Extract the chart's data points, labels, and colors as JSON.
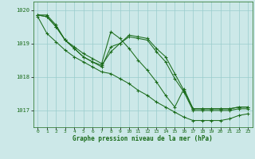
{
  "background_color": "#cce8e8",
  "grid_color": "#99cccc",
  "line_color": "#1a6b1a",
  "text_color": "#1a6b1a",
  "title": "Graphe pression niveau de la mer (hPa)",
  "xlim": [
    -0.5,
    23.5
  ],
  "ylim": [
    1016.5,
    1020.25
  ],
  "yticks": [
    1017,
    1018,
    1019,
    1020
  ],
  "xticks": [
    0,
    1,
    2,
    3,
    4,
    5,
    6,
    7,
    8,
    9,
    10,
    11,
    12,
    13,
    14,
    15,
    16,
    17,
    18,
    19,
    20,
    21,
    22,
    23
  ],
  "series": [
    [
      1019.85,
      1019.85,
      1019.55,
      1019.1,
      1018.9,
      1018.7,
      1018.55,
      1018.4,
      1019.35,
      1019.15,
      1018.85,
      1018.5,
      1018.2,
      1017.85,
      1017.45,
      1017.1,
      1017.65,
      1017.05,
      1017.05,
      1017.05,
      1017.05,
      1017.05,
      1017.1,
      1017.1
    ],
    [
      1019.85,
      1019.8,
      1019.5,
      1019.1,
      1018.85,
      1018.6,
      1018.45,
      1018.35,
      1018.75,
      1019.0,
      1019.25,
      1019.2,
      1019.15,
      1018.85,
      1018.6,
      1018.1,
      1017.6,
      1017.05,
      1017.05,
      1017.05,
      1017.05,
      1017.05,
      1017.1,
      1017.1
    ],
    [
      1019.85,
      1019.8,
      1019.5,
      1019.1,
      1018.85,
      1018.6,
      1018.45,
      1018.3,
      1018.9,
      1019.0,
      1019.2,
      1019.15,
      1019.1,
      1018.75,
      1018.45,
      1017.95,
      1017.55,
      1017.0,
      1017.0,
      1017.0,
      1017.0,
      1017.0,
      1017.05,
      1017.05
    ],
    [
      1019.8,
      1019.3,
      1019.05,
      1018.8,
      1018.6,
      1018.45,
      1018.3,
      1018.15,
      1018.1,
      1017.95,
      1017.8,
      1017.6,
      1017.45,
      1017.25,
      1017.1,
      1016.95,
      1016.8,
      1016.7,
      1016.7,
      1016.7,
      1016.7,
      1016.75,
      1016.85,
      1016.9
    ]
  ]
}
